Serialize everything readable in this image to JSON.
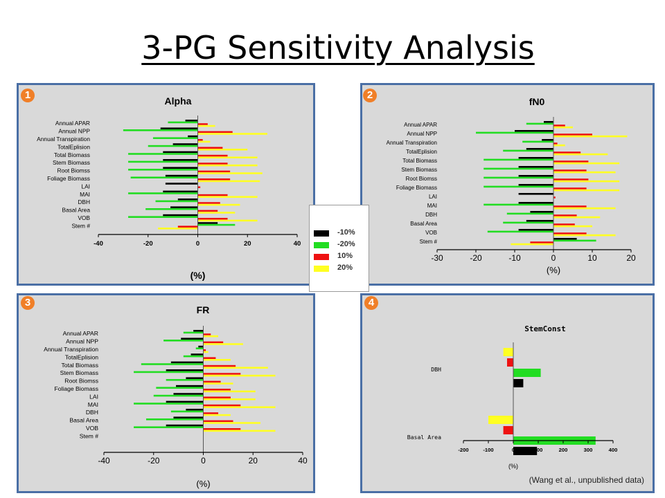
{
  "page": {
    "title": "3-PG Sensitivity Analysis",
    "source_note": "(Wang et al., unpublished data)"
  },
  "legend": {
    "items": [
      {
        "label": "-10%",
        "color": "#000000"
      },
      {
        "label": "-20%",
        "color": "#22dd22"
      },
      {
        "label": "10%",
        "color": "#ee1111"
      },
      {
        "label": "20%",
        "color": "#ffff22"
      }
    ]
  },
  "panels": [
    {
      "badge": "1"
    },
    {
      "badge": "2"
    },
    {
      "badge": "3"
    },
    {
      "badge": "4"
    }
  ],
  "chart_data": [
    {
      "type": "bar",
      "orientation": "horizontal",
      "title": "Alpha",
      "xlabel": "(%)",
      "xlim": [
        -40,
        40
      ],
      "xticks": [
        -40,
        -20,
        0,
        20,
        40
      ],
      "categories": [
        "Annual APAR",
        "Annual NPP",
        "Annual Transpiration",
        "TotalEplision",
        "Total Biomass",
        "Stem Biomass",
        "Root Biomss",
        "Foliage Biomass",
        "LAI",
        "MAI",
        "DBH",
        "Basal Area",
        "VOB",
        "Stem #"
      ],
      "series": [
        {
          "name": "-10%",
          "color": "#000000",
          "values": [
            -5,
            -15,
            -4,
            -10,
            -14,
            -14,
            -14,
            -13,
            -13,
            -14,
            -8,
            -11,
            -14,
            8
          ]
        },
        {
          "name": "-20%",
          "color": "#22dd22",
          "values": [
            -12,
            -30,
            -18,
            -20,
            -28,
            -28,
            -28,
            -27,
            0,
            -28,
            -17,
            -21,
            -28,
            15
          ]
        },
        {
          "name": "10%",
          "color": "#ee1111",
          "values": [
            4,
            14,
            2,
            10,
            12,
            12,
            13,
            13,
            1,
            12,
            9,
            8,
            12,
            -8
          ]
        },
        {
          "name": "20%",
          "color": "#ffff22",
          "values": [
            7,
            28,
            5,
            20,
            24,
            24,
            26,
            25,
            0,
            24,
            17,
            15,
            24,
            -16
          ]
        }
      ]
    },
    {
      "type": "bar",
      "orientation": "horizontal",
      "title": "fN0",
      "xlabel": "(%)",
      "xlim": [
        -30,
        20
      ],
      "xticks": [
        -30,
        -20,
        -10,
        0,
        10,
        20
      ],
      "categories": [
        "Annual APAR",
        "Annual NPP",
        "Annual Transpiration",
        "TotalEplision",
        "Total Biomass",
        "Stem Biomass",
        "Root Biomss",
        "Foliage Biomass",
        "LAI",
        "MAI",
        "DBH",
        "Basal Area",
        "VOB",
        "Stem #"
      ],
      "series": [
        {
          "name": "-10%",
          "color": "#000000",
          "values": [
            -2.5,
            -10,
            -3,
            -7,
            -9,
            -9,
            -9,
            -9,
            -9,
            -9,
            -6,
            -7,
            -9,
            6
          ]
        },
        {
          "name": "-20%",
          "color": "#22dd22",
          "values": [
            -7,
            -20,
            -8,
            -13,
            -18,
            -18,
            -18,
            -18,
            0,
            -18,
            -12,
            -13,
            -17,
            11
          ]
        },
        {
          "name": "10%",
          "color": "#ee1111",
          "values": [
            3,
            10,
            1,
            7,
            9,
            8.5,
            9,
            8.5,
            0.5,
            8.5,
            6,
            5.5,
            8.5,
            -6
          ]
        },
        {
          "name": "20%",
          "color": "#ffff22",
          "values": [
            5,
            19,
            3,
            14,
            17,
            16,
            17,
            17,
            0,
            16,
            12,
            10,
            16,
            -11
          ]
        }
      ]
    },
    {
      "type": "bar",
      "orientation": "horizontal",
      "title": "FR",
      "xlabel": "(%)",
      "xlim": [
        -40,
        40
      ],
      "xticks": [
        -40,
        -20,
        0,
        20,
        40
      ],
      "categories": [
        "Annual APAR",
        "Annual NPP",
        "Annual Transpiration",
        "TotalEplision",
        "Total Biomass",
        "Stem Biomass",
        "Root Biomss",
        "Foliage Biomass",
        "LAI",
        "MAI",
        "DBH",
        "Basal Area",
        "VOB",
        "Stem #"
      ],
      "series": [
        {
          "name": "-10%",
          "color": "#000000",
          "values": [
            -4,
            -9,
            -2,
            -5,
            -13,
            -15,
            -7,
            -11,
            -12,
            -15,
            -7,
            -12,
            -15,
            0
          ]
        },
        {
          "name": "-20%",
          "color": "#22dd22",
          "values": [
            -8,
            -16,
            -3,
            -8,
            -25,
            -28,
            -15,
            -19,
            -20,
            -28,
            -13,
            -23,
            -28,
            0
          ]
        },
        {
          "name": "10%",
          "color": "#ee1111",
          "values": [
            3,
            8,
            1,
            5,
            13,
            15,
            7,
            11,
            11,
            15,
            6,
            12,
            15,
            0
          ]
        },
        {
          "name": "20%",
          "color": "#ffff22",
          "values": [
            6,
            16,
            2,
            11,
            26,
            29,
            12,
            21,
            21,
            29,
            11,
            23,
            29,
            0
          ]
        }
      ]
    },
    {
      "type": "bar",
      "orientation": "horizontal",
      "title": "StemConst",
      "xlabel": "(%)",
      "xlim": [
        -200,
        400
      ],
      "xticks": [
        -200,
        -100,
        0,
        100,
        200,
        300,
        400
      ],
      "categories": [
        "DBH",
        "Basal Area"
      ],
      "series": [
        {
          "name": "20%",
          "color": "#ffff22",
          "values": [
            -40,
            -100
          ]
        },
        {
          "name": "10%",
          "color": "#ee1111",
          "values": [
            -25,
            -40
          ]
        },
        {
          "name": "-20%",
          "color": "#22dd22",
          "values": [
            110,
            330
          ]
        },
        {
          "name": "-10%",
          "color": "#000000",
          "values": [
            40,
            95
          ]
        }
      ]
    }
  ]
}
